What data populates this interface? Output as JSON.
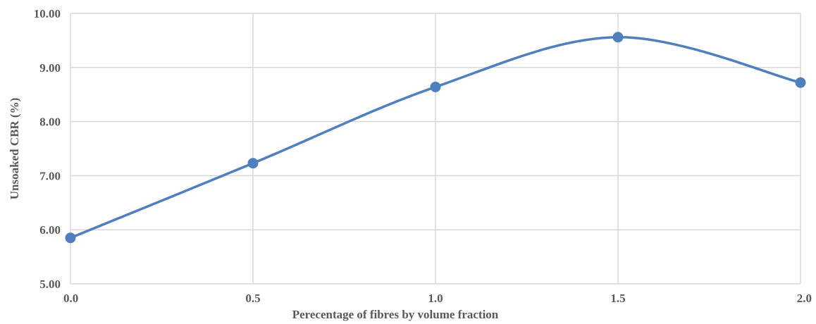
{
  "chart_data": {
    "type": "line",
    "smooth": true,
    "title": "",
    "xlabel": "Perecentage of fibres by volume fraction",
    "ylabel": "Unsoaked CBR (%)",
    "x": [
      0.0,
      0.5,
      1.0,
      1.5,
      2.0
    ],
    "x_tick_labels": [
      "0.0",
      "0.5",
      "1.0",
      "1.5",
      "2.0"
    ],
    "y_tick_labels": [
      "5.00",
      "6.00",
      "7.00",
      "8.00",
      "9.00",
      "10.00"
    ],
    "xlim": [
      0.0,
      2.0
    ],
    "ylim": [
      5.0,
      10.0
    ],
    "grid": true,
    "legend": "none",
    "series": [
      {
        "values": [
          5.85,
          7.23,
          8.64,
          9.56,
          8.72
        ],
        "color": "#4f7fbf"
      }
    ]
  }
}
